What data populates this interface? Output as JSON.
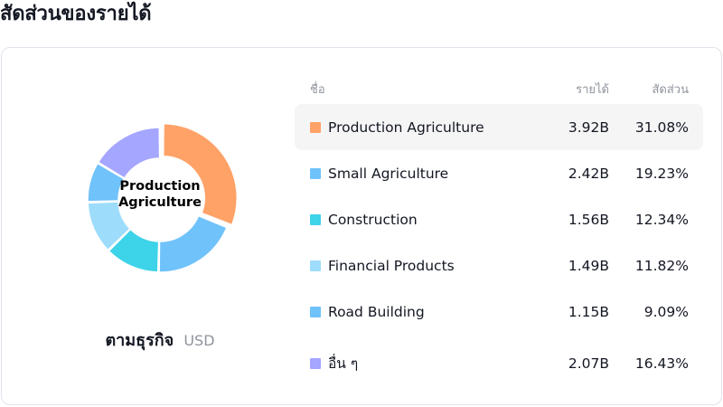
{
  "title": "สัดส่วนของรายได้",
  "donut": {
    "center_label": "Production Agriculture",
    "caption": "ตามธุรกิจ",
    "currency": "USD"
  },
  "table": {
    "headers": {
      "name": "ชื่อ",
      "revenue": "รายได้",
      "share": "สัดส่วน"
    },
    "rows": [
      {
        "name": "Production Agriculture",
        "revenue": "3.92B",
        "share": "31.08%",
        "share_value": 31.08,
        "color": "#ffa268",
        "highlighted": true
      },
      {
        "name": "Small Agriculture",
        "revenue": "2.42B",
        "share": "19.23%",
        "share_value": 19.23,
        "color": "#70c2fa",
        "highlighted": false
      },
      {
        "name": "Construction",
        "revenue": "1.56B",
        "share": "12.34%",
        "share_value": 12.34,
        "color": "#3dd3e8",
        "highlighted": false
      },
      {
        "name": "Financial Products",
        "revenue": "1.49B",
        "share": "11.82%",
        "share_value": 11.82,
        "color": "#9edcfb",
        "highlighted": false
      },
      {
        "name": "Road Building",
        "revenue": "1.15B",
        "share": "9.09%",
        "share_value": 9.09,
        "color": "#70c2fa",
        "highlighted": false
      },
      {
        "name": "อื่น ๆ",
        "revenue": "2.07B",
        "share": "16.43%",
        "share_value": 16.43,
        "color": "#a4a6ff",
        "highlighted": false
      }
    ]
  }
}
